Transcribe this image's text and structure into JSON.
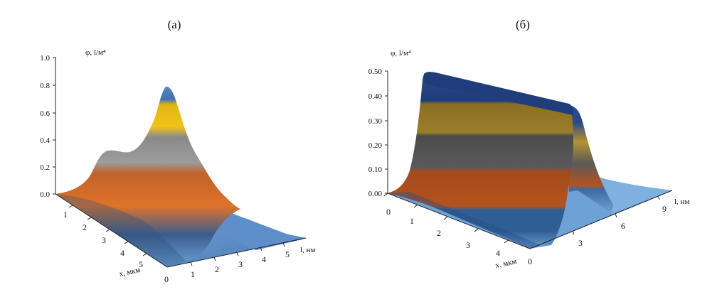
{
  "chart_data": [
    {
      "type": "surface",
      "panel_label": "(а)",
      "zlabel": "φ, l/м⁴",
      "xlabel": "x, мкм",
      "ylabel": "l, нм",
      "z_ticks": [
        "0.0",
        "0.2",
        "0.4",
        "0.6",
        "0.8",
        "1.0"
      ],
      "x_ticks": [
        "1",
        "2",
        "3",
        "4",
        "5"
      ],
      "x_origin": "0",
      "y_ticks": [
        "1",
        "2",
        "3",
        "4",
        "5"
      ],
      "x_range": [
        0,
        5.4
      ],
      "y_range": [
        0,
        6
      ],
      "zlim": [
        0,
        1.0
      ],
      "peak": {
        "x": 0.6,
        "l": 4.2,
        "z": 0.8
      },
      "color_bands": [
        "#3f6fb2",
        "#f2c417",
        "#9c9c9c",
        "#e0732a",
        "#3a5d8e",
        "#6ea2d6"
      ]
    },
    {
      "type": "surface",
      "panel_label": "(б)",
      "zlabel": "φ, l/м⁴",
      "xlabel": "x, мкм",
      "ylabel": "l, нм",
      "z_ticks": [
        "0.00",
        "0.10",
        "0.20",
        "0.30",
        "0.40",
        "0.50"
      ],
      "x_ticks": [
        "0",
        "1",
        "2",
        "3",
        "4"
      ],
      "x_origin": "0",
      "y_ticks": [
        "3",
        "6",
        "9"
      ],
      "x_range": [
        0,
        4.6
      ],
      "y_range": [
        0,
        10
      ],
      "zlim": [
        0,
        0.5
      ],
      "plateau": {
        "z": 0.5,
        "l_center": 5
      },
      "color_bands": [
        "#1f3d7a",
        "#9c7d2a",
        "#5a5a5a",
        "#b5531e",
        "#2f5e94",
        "#6ea2d6"
      ]
    }
  ]
}
